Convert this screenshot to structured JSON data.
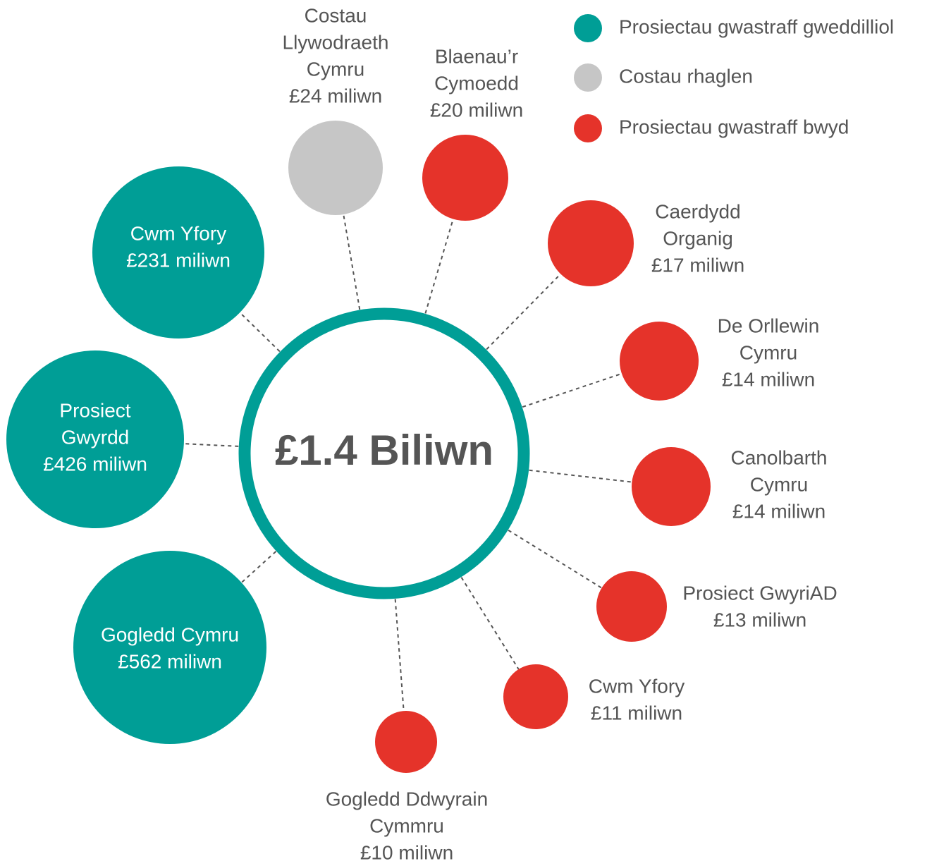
{
  "center": {
    "label": "£1.4 Biliwn"
  },
  "legend": [
    {
      "label": "Prosiectau gwastraff gweddilliol",
      "color": "#009e96"
    },
    {
      "label": "Costau rhaglen",
      "color": "#c6c6c6"
    },
    {
      "label": "Prosiectau gwastraff bwyd",
      "color": "#e5332a"
    }
  ],
  "nodes": [
    {
      "lines": [
        "Cwm Yfory",
        "£231 miliwn"
      ],
      "group": 0
    },
    {
      "lines": [
        "Prosiect",
        "Gwyrdd",
        "£426 miliwn"
      ],
      "group": 0
    },
    {
      "lines": [
        "Gogledd Cymru",
        "£562 miliwn"
      ],
      "group": 0
    },
    {
      "lines": [
        "Costau",
        "Llywodraeth",
        "Cymru",
        "£24 miliwn"
      ],
      "group": 1
    },
    {
      "lines": [
        "Blaenau’r",
        "Cymoedd",
        "£20 miliwn"
      ],
      "group": 2
    },
    {
      "lines": [
        "Caerdydd",
        "Organig",
        "£17 miliwn"
      ],
      "group": 2
    },
    {
      "lines": [
        "De Orllewin",
        "Cymru",
        "£14 miliwn"
      ],
      "group": 2
    },
    {
      "lines": [
        "Canolbarth",
        "Cymru",
        "£14 miliwn"
      ],
      "group": 2
    },
    {
      "lines": [
        "Prosiect GwyriAD",
        "£13 miliwn"
      ],
      "group": 2
    },
    {
      "lines": [
        "Cwm Yfory",
        "£11 miliwn"
      ],
      "group": 2
    },
    {
      "lines": [
        "Gogledd Ddwyrain",
        "Cymmru",
        "£10 miliwn"
      ],
      "group": 2
    }
  ]
}
